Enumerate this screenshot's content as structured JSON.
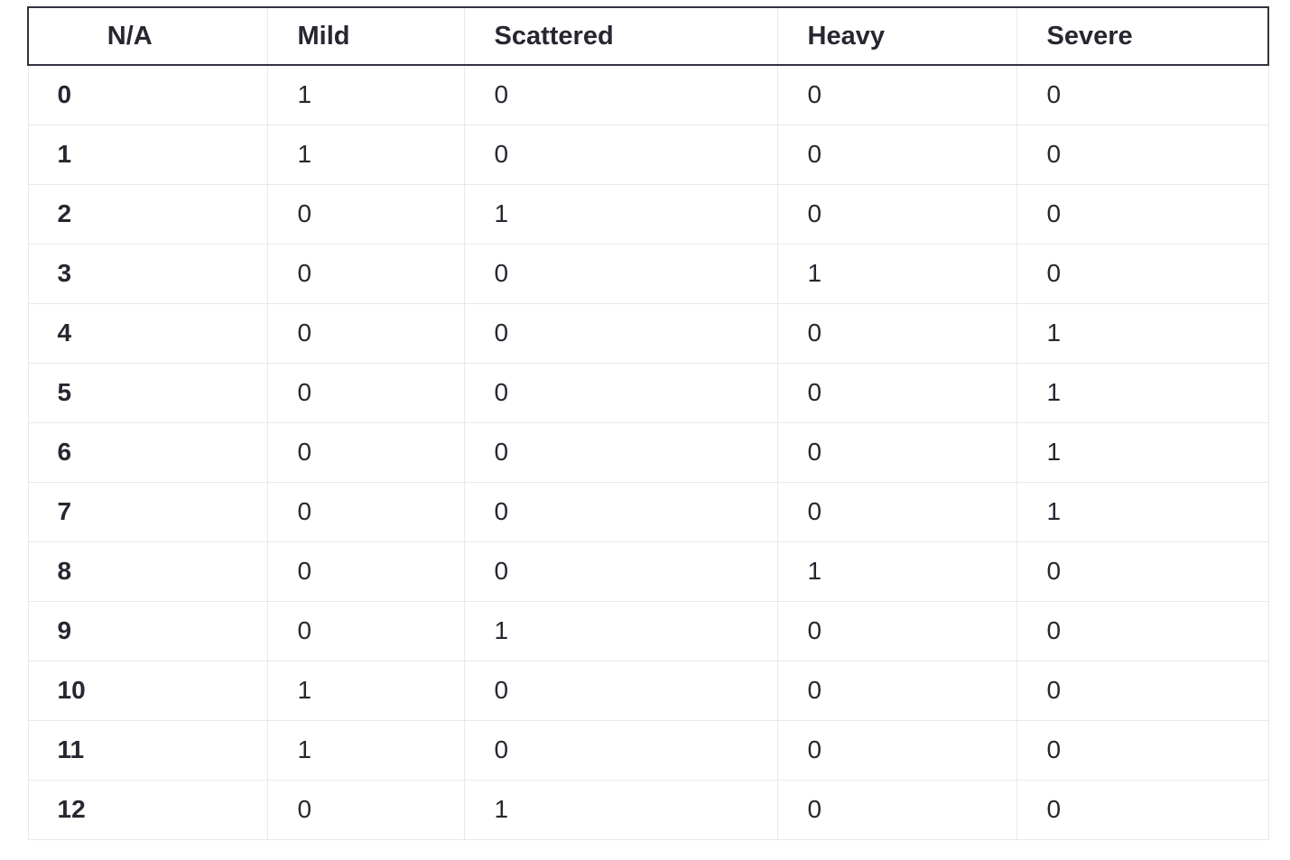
{
  "table": {
    "columns": [
      "N/A",
      "Mild",
      "Scattered",
      "Heavy",
      "Severe"
    ],
    "rows": [
      {
        "index": "0",
        "values": [
          "1",
          "0",
          "0",
          "0"
        ]
      },
      {
        "index": "1",
        "values": [
          "1",
          "0",
          "0",
          "0"
        ]
      },
      {
        "index": "2",
        "values": [
          "0",
          "1",
          "0",
          "0"
        ]
      },
      {
        "index": "3",
        "values": [
          "0",
          "0",
          "1",
          "0"
        ]
      },
      {
        "index": "4",
        "values": [
          "0",
          "0",
          "0",
          "1"
        ]
      },
      {
        "index": "5",
        "values": [
          "0",
          "0",
          "0",
          "1"
        ]
      },
      {
        "index": "6",
        "values": [
          "0",
          "0",
          "0",
          "1"
        ]
      },
      {
        "index": "7",
        "values": [
          "0",
          "0",
          "0",
          "1"
        ]
      },
      {
        "index": "8",
        "values": [
          "0",
          "0",
          "1",
          "0"
        ]
      },
      {
        "index": "9",
        "values": [
          "0",
          "1",
          "0",
          "0"
        ]
      },
      {
        "index": "10",
        "values": [
          "1",
          "0",
          "0",
          "0"
        ]
      },
      {
        "index": "11",
        "values": [
          "1",
          "0",
          "0",
          "0"
        ]
      },
      {
        "index": "12",
        "values": [
          "0",
          "1",
          "0",
          "0"
        ]
      }
    ]
  }
}
